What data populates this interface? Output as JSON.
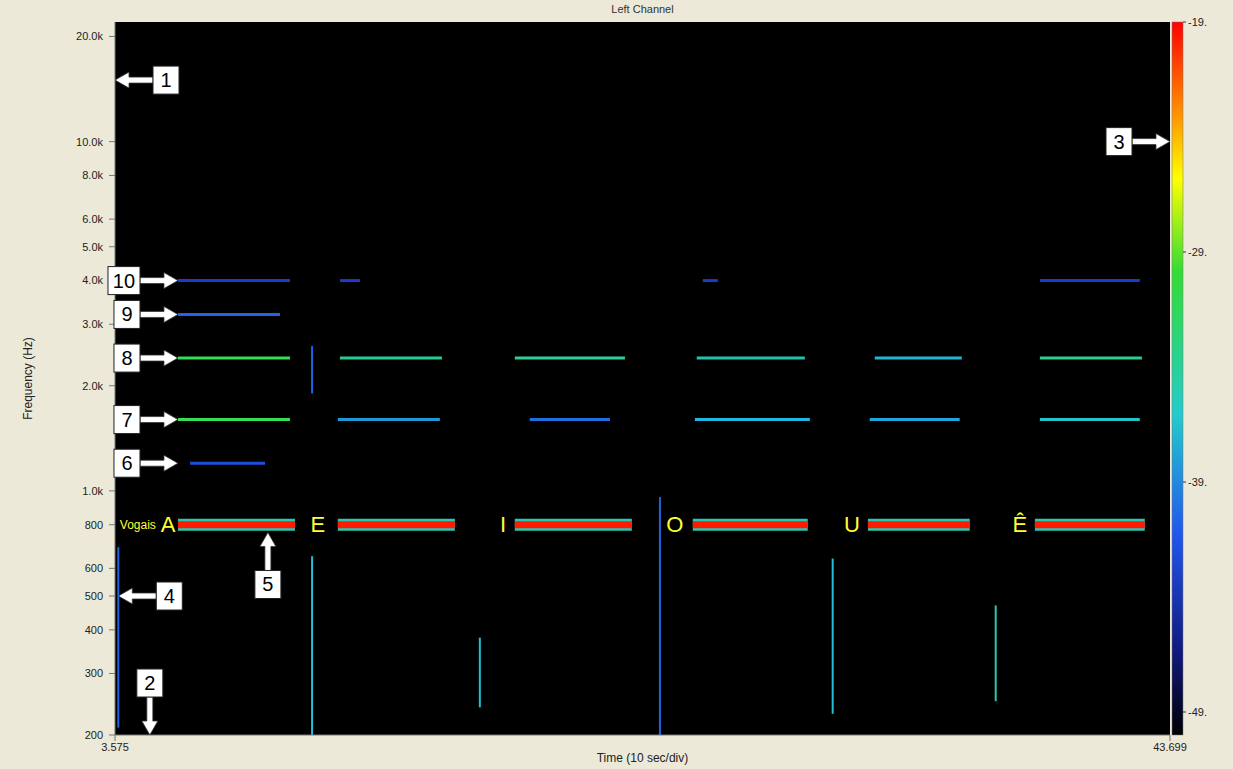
{
  "chart_data": {
    "type": "line",
    "title": "Left Channel",
    "x_label": "Time (10 sec/div)",
    "y_label": "Frequency (Hz)",
    "log": "y",
    "grid": false,
    "xlim": [
      3.575,
      43.699
    ],
    "xticks": [
      3.575,
      43.699
    ],
    "ylim": [
      200,
      22000
    ],
    "yticks": [
      200,
      300,
      400,
      500,
      600,
      800,
      {
        "value": 1000,
        "label": "1.0k"
      },
      {
        "value": 2000,
        "label": "2.0k"
      },
      {
        "value": 3000,
        "label": "3.0k"
      },
      {
        "value": 4000,
        "label": "4.0k"
      },
      {
        "value": 5000,
        "label": "5.0k"
      },
      {
        "value": 6000,
        "label": "6.0k"
      },
      {
        "value": 8000,
        "label": "8.0k"
      },
      {
        "value": 10000,
        "label": "10.0k"
      },
      {
        "value": 20000,
        "label": "20.0k"
      }
    ],
    "series": [
      {
        "x": [
          5.97,
          10.42
        ],
        "values": [
          800,
          800
        ],
        "color": "#ff1a00",
        "line_style": "thick"
      },
      {
        "x": [
          12.05,
          16.5
        ],
        "values": [
          800,
          800
        ],
        "color": "#ff1a00",
        "line_style": "thick"
      },
      {
        "x": [
          18.78,
          23.23
        ],
        "values": [
          800,
          800
        ],
        "color": "#ff1a00",
        "line_style": "thick"
      },
      {
        "x": [
          25.55,
          29.92
        ],
        "values": [
          800,
          800
        ],
        "color": "#ff1a00",
        "line_style": "thick"
      },
      {
        "x": [
          32.21,
          36.08
        ],
        "values": [
          800,
          800
        ],
        "color": "#ff1a00",
        "line_style": "thick"
      },
      {
        "x": [
          38.56,
          42.74
        ],
        "values": [
          800,
          800
        ],
        "color": "#ff1a00",
        "line_style": "thick"
      },
      {
        "x": [
          6.43,
          9.28
        ],
        "values": [
          1200,
          1200
        ],
        "color": "#1f4fe0"
      },
      {
        "x": [
          5.97,
          10.23
        ],
        "values": [
          1600,
          1600
        ],
        "color": "#33dd55"
      },
      {
        "x": [
          12.05,
          15.93
        ],
        "values": [
          1600,
          1600
        ],
        "color": "#1a9ad8"
      },
      {
        "x": [
          19.35,
          22.4
        ],
        "values": [
          1600,
          1600
        ],
        "color": "#1f6fe0"
      },
      {
        "x": [
          25.63,
          30.0
        ],
        "values": [
          1600,
          1600
        ],
        "color": "#20b8e0"
      },
      {
        "x": [
          32.28,
          35.7
        ],
        "values": [
          1600,
          1600
        ],
        "color": "#1fa6de"
      },
      {
        "x": [
          38.75,
          42.55
        ],
        "values": [
          1600,
          1600
        ],
        "color": "#22c4c8"
      },
      {
        "x": [
          5.97,
          10.23
        ],
        "values": [
          2400,
          2400
        ],
        "color": "#33dd55"
      },
      {
        "x": [
          12.13,
          16.01
        ],
        "values": [
          2400,
          2400
        ],
        "color": "#22cc99"
      },
      {
        "x": [
          18.78,
          22.97
        ],
        "values": [
          2400,
          2400
        ],
        "color": "#2ccf9f"
      },
      {
        "x": [
          25.7,
          29.81
        ],
        "values": [
          2400,
          2400
        ],
        "color": "#22c4a8"
      },
      {
        "x": [
          32.47,
          35.78
        ],
        "values": [
          2400,
          2400
        ],
        "color": "#1fb8d0"
      },
      {
        "x": [
          38.75,
          42.63
        ],
        "values": [
          2400,
          2400
        ],
        "color": "#2ad08a"
      },
      {
        "x": [
          5.97,
          9.85
        ],
        "values": [
          3200,
          3200
        ],
        "color": "#2a5ef0"
      },
      {
        "x": [
          5.97,
          10.23
        ],
        "values": [
          4000,
          4000
        ],
        "color": "#1c3cc8"
      },
      {
        "x": [
          12.13,
          12.89
        ],
        "values": [
          4000,
          4000
        ],
        "color": "#1c3cc8"
      },
      {
        "x": [
          25.93,
          26.5
        ],
        "values": [
          4000,
          4000
        ],
        "color": "#1c3cc8"
      },
      {
        "x": [
          38.75,
          42.55
        ],
        "values": [
          4000,
          4000
        ],
        "color": "#1c3cc8"
      },
      {
        "x": [
          3.7,
          3.7
        ],
        "values": [
          210,
          690
        ],
        "color": "#1e63e0"
      },
      {
        "x": [
          11.07,
          11.07
        ],
        "values": [
          200,
          650
        ],
        "color": "#20c0d8"
      },
      {
        "x": [
          11.07,
          11.07
        ],
        "values": [
          1900,
          2600
        ],
        "color": "#1e63e0"
      },
      {
        "x": [
          17.45,
          17.45
        ],
        "values": [
          240,
          380
        ],
        "color": "#20c0d8"
      },
      {
        "x": [
          24.3,
          24.3
        ],
        "values": [
          200,
          960
        ],
        "color": "#1e63e0"
      },
      {
        "x": [
          30.87,
          30.87
        ],
        "values": [
          230,
          640
        ],
        "color": "#20c0d8"
      },
      {
        "x": [
          37.07,
          37.07
        ],
        "values": [
          250,
          470
        ],
        "color": "#28c8b0"
      }
    ],
    "colorbar": {
      "range": [
        -50,
        -19
      ],
      "ticks": [
        {
          "value": -19,
          "label": "-19."
        },
        {
          "value": -29,
          "label": "-29."
        },
        {
          "value": -39,
          "label": "-39."
        },
        {
          "value": -49,
          "label": "-49."
        }
      ]
    },
    "annotations": [
      {
        "text": "1",
        "x": 3.575,
        "y": 15000,
        "direction": "left"
      },
      {
        "text": "2",
        "x": 4.9,
        "y": 200,
        "direction": "down"
      },
      {
        "text": "3",
        "x": 43.699,
        "y": 10000,
        "direction": "right"
      },
      {
        "text": "4",
        "x": 3.7,
        "y": 500,
        "direction": "left"
      },
      {
        "text": "5",
        "x": 9.39,
        "y": 760,
        "direction": "up"
      },
      {
        "text": "6",
        "x": 5.97,
        "y": 1200,
        "direction": "right"
      },
      {
        "text": "7",
        "x": 5.97,
        "y": 1600,
        "direction": "right"
      },
      {
        "text": "8",
        "x": 5.97,
        "y": 2400,
        "direction": "right"
      },
      {
        "text": "9",
        "x": 5.97,
        "y": 3200,
        "direction": "right"
      },
      {
        "text": "10",
        "x": 5.97,
        "y": 4000,
        "direction": "right"
      }
    ],
    "row_label": {
      "text": "Vogais",
      "x": 5.13,
      "y": 800
    },
    "vowels": [
      {
        "text": "A",
        "x": 5.59,
        "y": 800
      },
      {
        "text": "E",
        "x": 11.29,
        "y": 800
      },
      {
        "text": "I",
        "x": 18.33,
        "y": 800
      },
      {
        "text": "O",
        "x": 24.87,
        "y": 800
      },
      {
        "text": "U",
        "x": 31.6,
        "y": 800
      },
      {
        "text": "Ê",
        "x": 37.99,
        "y": 800
      }
    ]
  }
}
